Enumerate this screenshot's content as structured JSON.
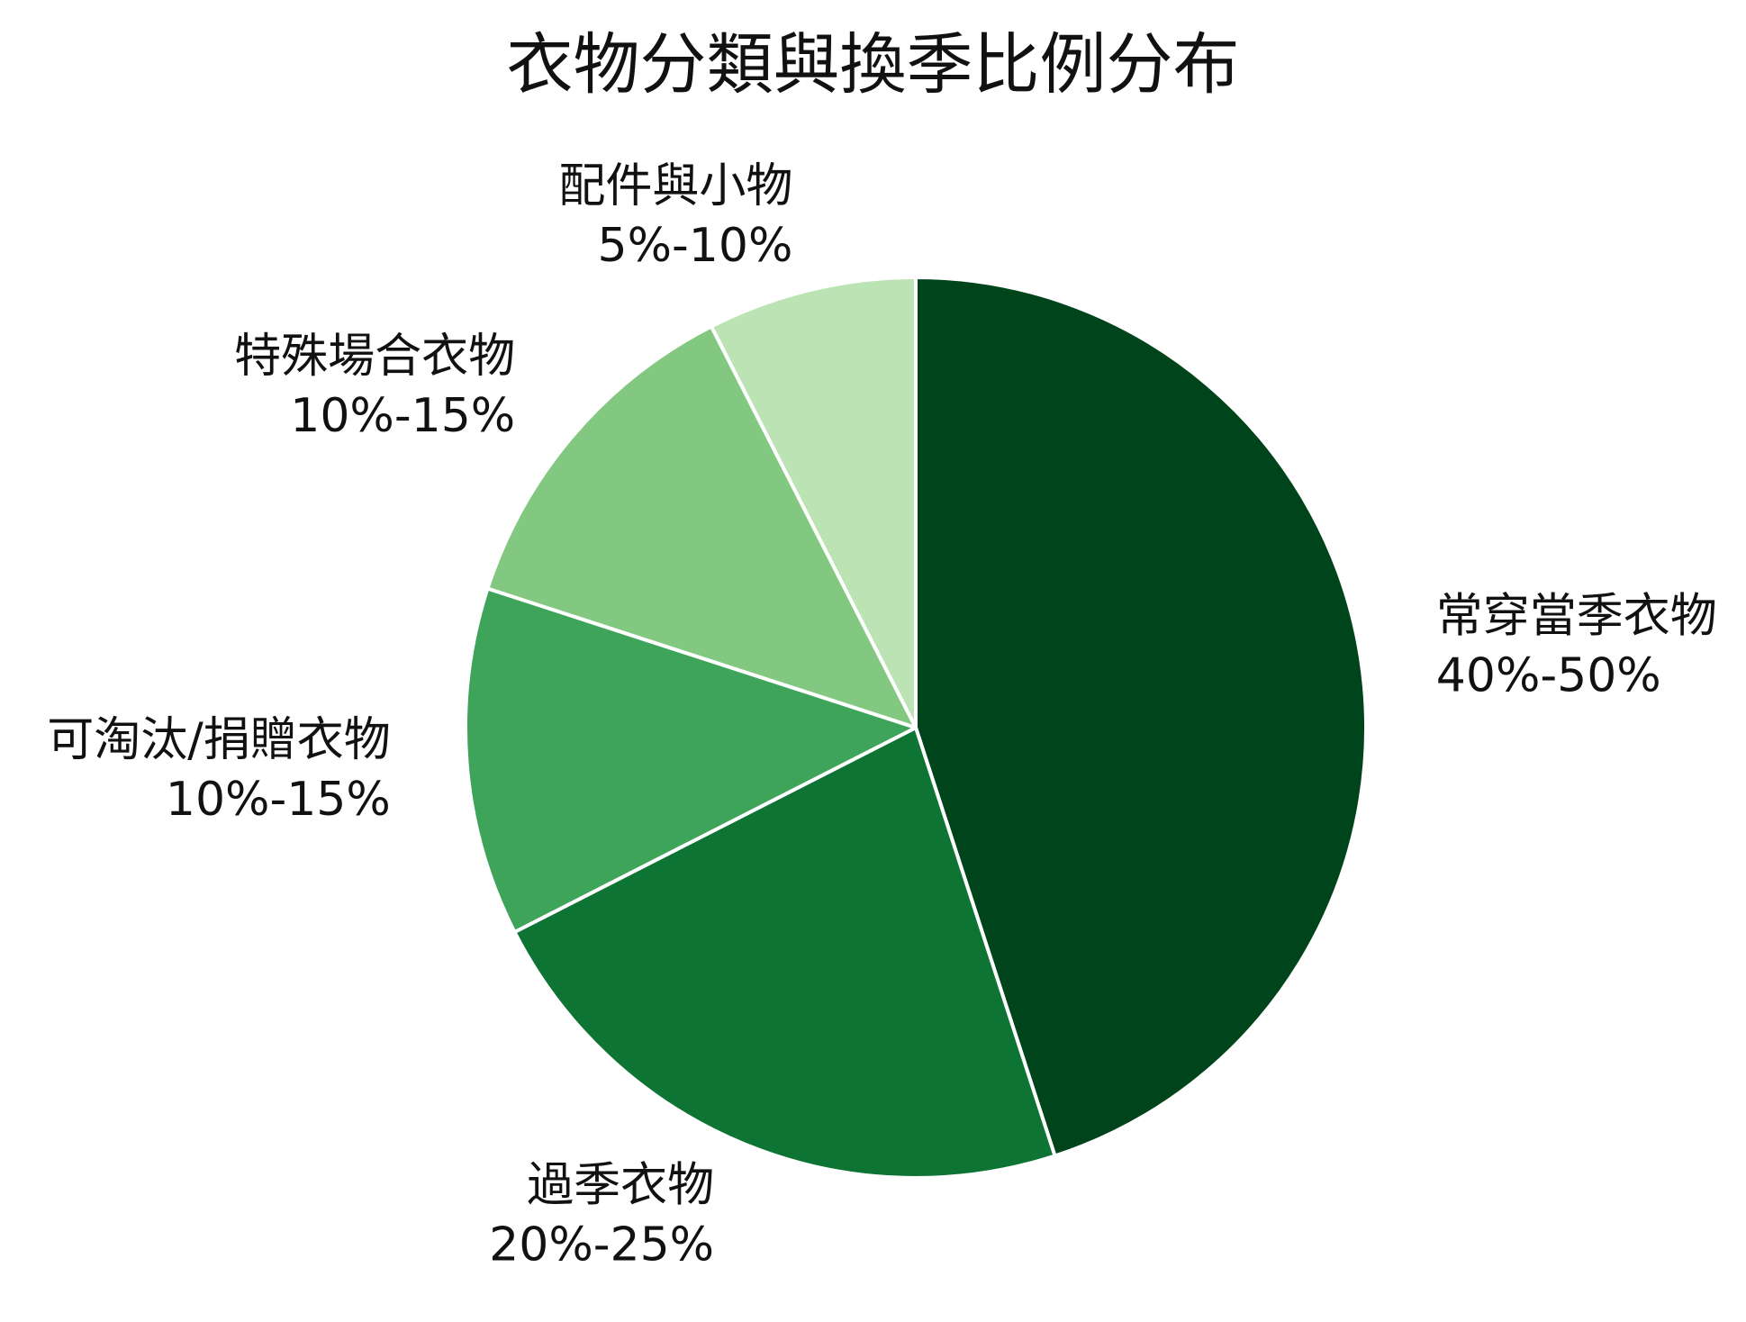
{
  "chart_data": {
    "type": "pie",
    "title": "衣物分類與換季比例分布",
    "slices": [
      {
        "label": "常穿當季衣物",
        "range_text": "40%-50%",
        "value": 45,
        "color": "#00441b"
      },
      {
        "label": "過季衣物",
        "range_text": "20%-25%",
        "value": 22.5,
        "color": "#0e7434"
      },
      {
        "label": "可淘汰/捐贈衣物",
        "range_text": "10%-15%",
        "value": 12.5,
        "color": "#3da45a"
      },
      {
        "label": "特殊場合衣物",
        "range_text": "10%-15%",
        "value": 12.5,
        "color": "#83c881"
      },
      {
        "label": "配件與小物",
        "range_text": "5%-10%",
        "value": 7.5,
        "color": "#bbe3b3"
      }
    ],
    "start_angle": "12 o'clock",
    "direction": "clockwise",
    "legend": "none"
  }
}
